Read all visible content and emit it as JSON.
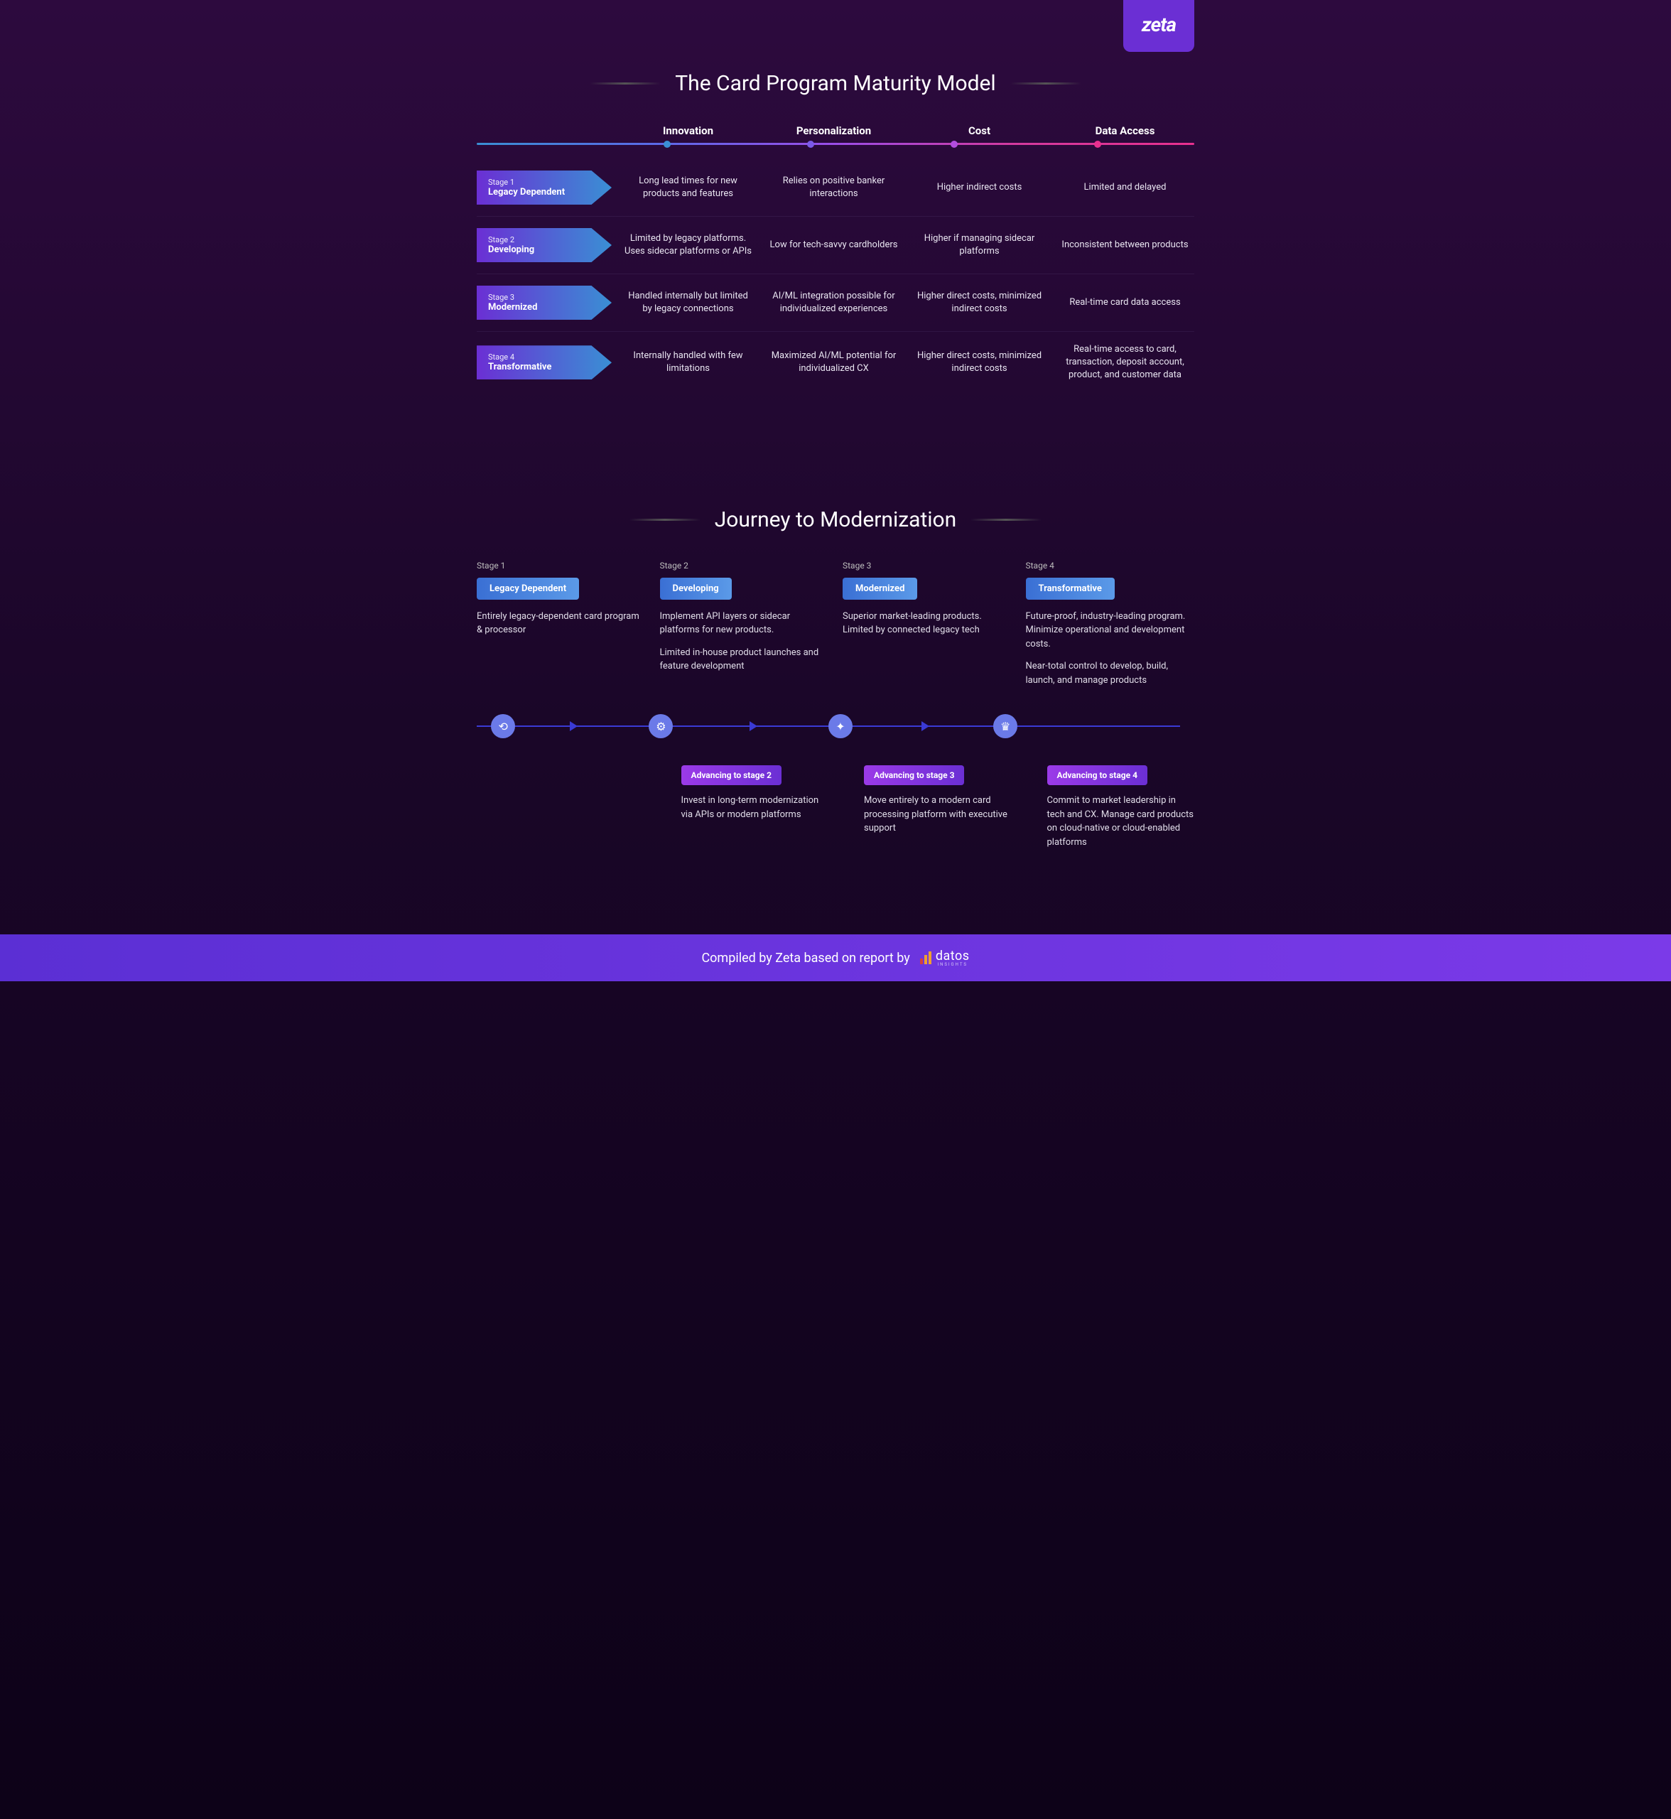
{
  "brand": {
    "logo_text": "zeta"
  },
  "title": "The Card Program Maturity Model",
  "columns": [
    {
      "label": "Innovation",
      "dot_color": "#3a8fd4",
      "dot_pos_pct": 26
    },
    {
      "label": "Personalization",
      "dot_color": "#7b5ae8",
      "dot_pos_pct": 46
    },
    {
      "label": "Cost",
      "dot_color": "#b34de0",
      "dot_pos_pct": 66
    },
    {
      "label": "Data Access",
      "dot_color": "#e8308f",
      "dot_pos_pct": 86
    }
  ],
  "gradient_line_colors": [
    "#3a8fd4",
    "#5b6ae8",
    "#9b4de8",
    "#d43a9f",
    "#e8308f"
  ],
  "stages": [
    {
      "num": "Stage 1",
      "title": "Legacy Dependent",
      "badge_gradient": [
        "#6b2fd4",
        "#3a8fd4"
      ],
      "cells": [
        "Long lead times for new products and features",
        "Relies on positive banker interactions",
        "Higher indirect costs",
        "Limited and delayed"
      ]
    },
    {
      "num": "Stage 2",
      "title": "Developing",
      "badge_gradient": [
        "#6b2fd4",
        "#3a8fd4"
      ],
      "cells": [
        "Limited by legacy platforms. Uses sidecar platforms or APIs",
        "Low for tech-savvy cardholders",
        "Higher if managing sidecar platforms",
        "Inconsistent between products"
      ]
    },
    {
      "num": "Stage 3",
      "title": "Modernized",
      "badge_gradient": [
        "#6b2fd4",
        "#3a8fd4"
      ],
      "cells": [
        "Handled internally but limited by legacy connections",
        "AI/ML integration possible for individualized experiences",
        "Higher direct costs, minimized indirect costs",
        "Real-time card data access"
      ]
    },
    {
      "num": "Stage 4",
      "title": "Transformative",
      "badge_gradient": [
        "#6b2fd4",
        "#3a8fd4"
      ],
      "cells": [
        "Internally handled with few limitations",
        "Maximized AI/ML potential for individualized CX",
        "Higher direct costs, minimized indirect costs",
        "Real-time access to card, transaction, deposit account, product, and customer data"
      ]
    }
  ],
  "journey": {
    "title": "Journey to Modernization",
    "timeline_color": "#3a3ad4",
    "icon_bg": "#6b7ae8",
    "icon_positions_pct": [
      2,
      24,
      49,
      72
    ],
    "arrow_positions_pct": [
      13,
      38,
      62
    ],
    "stages": [
      {
        "num": "Stage 1",
        "pill": "Legacy Dependent",
        "pill_gradient": [
          "#3a6fd4",
          "#5b9ae8"
        ],
        "desc": [
          "Entirely legacy-dependent card program & processor"
        ],
        "icon_glyph": "⟲"
      },
      {
        "num": "Stage 2",
        "pill": "Developing",
        "pill_gradient": [
          "#3a6fd4",
          "#5b9ae8"
        ],
        "desc": [
          "Implement API layers or sidecar platforms for new products.",
          "Limited in-house product launches and feature development"
        ],
        "icon_glyph": "⚙"
      },
      {
        "num": "Stage 3",
        "pill": "Modernized",
        "pill_gradient": [
          "#3a6fd4",
          "#5b9ae8"
        ],
        "desc": [
          "Superior market-leading products. Limited by connected legacy tech"
        ],
        "icon_glyph": "✦"
      },
      {
        "num": "Stage 4",
        "pill": "Transformative",
        "pill_gradient": [
          "#3a6fd4",
          "#5b9ae8"
        ],
        "desc": [
          "Future-proof, industry-leading program. Minimize operational and development costs.",
          "Near-total control to develop, build, launch, and manage products"
        ],
        "icon_glyph": "♛"
      }
    ],
    "advancing": [
      {
        "pill": "Advancing to stage 2",
        "pill_gradient": [
          "#9b3ae8",
          "#6b2fd4"
        ],
        "desc": "Invest in long-term modernization via APIs or modern platforms"
      },
      {
        "pill": "Advancing to stage 3",
        "pill_gradient": [
          "#9b3ae8",
          "#6b2fd4"
        ],
        "desc": "Move entirely to a modern card processing platform with executive support"
      },
      {
        "pill": "Advancing to stage 4",
        "pill_gradient": [
          "#9b3ae8",
          "#6b2fd4"
        ],
        "desc": "Commit to market leadership in tech and CX. Manage card products on cloud-native or cloud-enabled platforms"
      }
    ]
  },
  "footer": {
    "text": "Compiled by Zeta based on report by",
    "attribution_name": "datos",
    "attribution_sub": "INSIGHTS"
  },
  "colors": {
    "bg_gradient": [
      "#2d0a3e",
      "#1a0628",
      "#0d0218"
    ],
    "footer_gradient": [
      "#5b2fd4",
      "#7b3ae8"
    ],
    "text_primary": "#ffffff",
    "text_body": "#e0dce8"
  }
}
